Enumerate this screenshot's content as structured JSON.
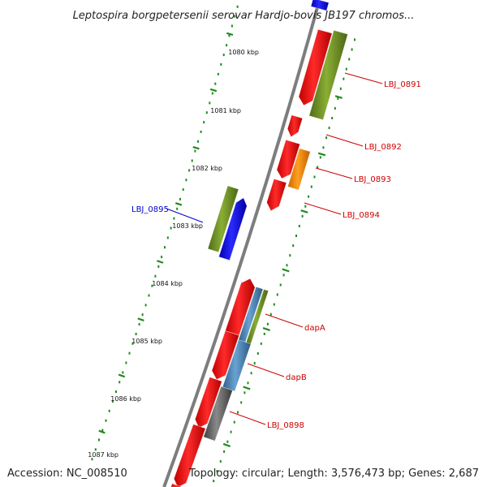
{
  "title": "Leptospira borgpetersenii serovar Hardjo-bovis JB197 chromos...",
  "footer": {
    "accession": "Accession: NC_008510",
    "summary": "Topology: circular; Length: 3,576,473 bp; Genes: 2,687"
  },
  "kbp_labels": [
    "1080 kbp",
    "1081 kbp",
    "1082 kbp",
    "1083 kbp",
    "1084 kbp",
    "1085 kbp",
    "1086 kbp",
    "1087 kbp"
  ],
  "gene_labels": [
    {
      "name": "LBJ_0891",
      "color": "#cc0000"
    },
    {
      "name": "LBJ_0892",
      "color": "#cc0000"
    },
    {
      "name": "LBJ_0893",
      "color": "#cc0000"
    },
    {
      "name": "LBJ_0894",
      "color": "#cc0000"
    },
    {
      "name": "LBJ_0895",
      "color": "#0000cc"
    },
    {
      "name": "dapA",
      "color": "#cc0000"
    },
    {
      "name": "dapB",
      "color": "#cc0000"
    },
    {
      "name": "LBJ_0898",
      "color": "#cc0000"
    }
  ],
  "colors": {
    "cds_forward": "#ff0000",
    "cds_reverse": "#0000ff",
    "feature_green": "#6b8e23",
    "feature_orange": "#ff8c00",
    "feature_steelblue": "#4682b4",
    "feature_gray": "#606060",
    "backbone": "#888888",
    "tick_dots": "#1e8b1e"
  }
}
